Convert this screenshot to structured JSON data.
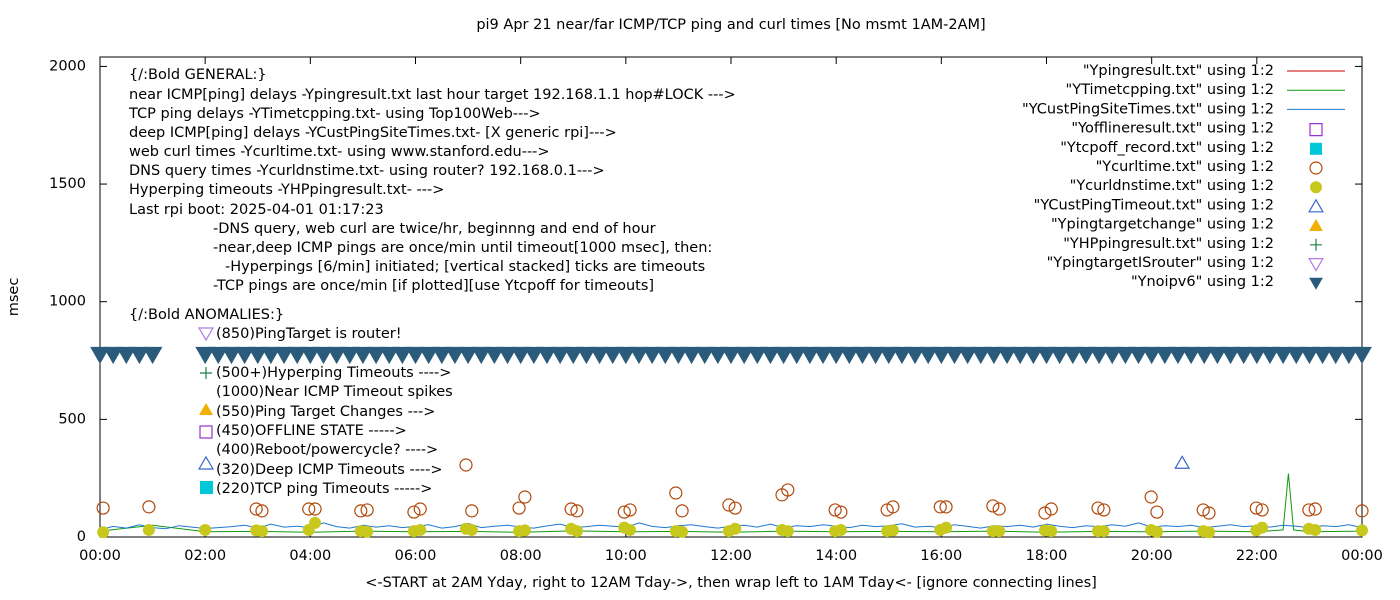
{
  "chart_data": {
    "type": "line",
    "title": "pi9 Apr 21  near/far ICMP/TCP ping and curl times [No msmt 1AM-2AM]",
    "x_label": "<-START at 2AM Yday, right to 12AM Tday->, then wrap left to 1AM Tday<- [ignore connecting lines]",
    "y_label": "msec",
    "xlim": [
      0,
      24
    ],
    "ylim": [
      0,
      2040
    ],
    "xticks": [
      {
        "value": 0,
        "label": "00:00"
      },
      {
        "value": 2,
        "label": "02:00"
      },
      {
        "value": 4,
        "label": "04:00"
      },
      {
        "value": 6,
        "label": "06:00"
      },
      {
        "value": 8,
        "label": "08:00"
      },
      {
        "value": 10,
        "label": "10:00"
      },
      {
        "value": 12,
        "label": "12:00"
      },
      {
        "value": 14,
        "label": "14:00"
      },
      {
        "value": 16,
        "label": "16:00"
      },
      {
        "value": 18,
        "label": "18:00"
      },
      {
        "value": 20,
        "label": "20:00"
      },
      {
        "value": 22,
        "label": "22:00"
      },
      {
        "value": 24,
        "label": "00:00"
      }
    ],
    "yticks": [
      0,
      500,
      1000,
      1500,
      2000
    ],
    "legend": "top-right",
    "annotations": [
      "{/:Bold GENERAL:}",
      "near ICMP[ping] delays -Ypingresult.txt last hour target 192.168.1.1 hop#LOCK --->",
      "TCP ping delays -YTimetcpping.txt- using Top100Web--->",
      "deep ICMP[ping] delays -YCustPingSiteTimes.txt- [X generic rpi]--->",
      "web curl times -Ycurltime.txt- using www.stanford.edu--->",
      "DNS query times -Ycurldnstime.txt- using router? 192.168.0.1--->",
      "Hyperping timeouts -YHPpingresult.txt- --->",
      "Last rpi boot: 2025-04-01 01:17:23",
      "-DNS query, web curl are twice/hr, beginnng and end of hour",
      "-near,deep ICMP pings are once/min until timeout[1000 msec], then:",
      "-Hyperpings [6/min] initiated; [vertical stacked] ticks are timeouts",
      "-TCP pings are once/min [if plotted][use Ytcpoff for timeouts]",
      "{/:Bold ANOMALIES:}"
    ],
    "anomaly_notes": [
      "(850)PingTarget is router!",
      "(500+)Hyperping Timeouts ---->",
      "(1000)Near ICMP Timeout spikes",
      "(550)Ping Target Changes --->",
      "(450)OFFLINE STATE ----->",
      "(400)Reboot/powercycle? ---->",
      "(320)Deep ICMP Timeouts ---->",
      "(220)TCP ping Timeouts ----->"
    ],
    "series": [
      {
        "name": "\"Ypingresult.txt\" using 1:2",
        "color": "#cc0000",
        "marker": "line",
        "x": [],
        "values": []
      },
      {
        "name": "\"YTimetcpping.txt\" using 1:2",
        "color": "#109a10",
        "marker": "line",
        "x": [
          0,
          1,
          2,
          3,
          4,
          5,
          6,
          7,
          8,
          9,
          10,
          11,
          12,
          13,
          14,
          15,
          16,
          17,
          18,
          19,
          20,
          21,
          22,
          22.5,
          22.6,
          22.7,
          23,
          24
        ],
        "values": [
          25,
          50,
          22,
          24,
          20,
          25,
          22,
          24,
          20,
          26,
          22,
          24,
          20,
          25,
          22,
          24,
          22,
          25,
          20,
          24,
          22,
          25,
          22,
          30,
          270,
          30,
          22,
          25
        ]
      },
      {
        "name": "\"YCustPingSiteTimes.txt\" using 1:2",
        "color": "#1e78d0",
        "marker": "line",
        "x": [
          0,
          0.25,
          0.5,
          0.75,
          1,
          1.25,
          1.5,
          1.75,
          2,
          2.25,
          2.5,
          2.75,
          3,
          3.25,
          3.5,
          3.75,
          4,
          4.25,
          4.5,
          4.75,
          5,
          5.25,
          5.5,
          5.75,
          6,
          6.25,
          6.5,
          6.75,
          7,
          7.25,
          7.5,
          7.75,
          8,
          8.25,
          8.5,
          8.75,
          9,
          9.25,
          9.5,
          9.75,
          10,
          10.25,
          10.5,
          10.75,
          11,
          11.25,
          11.5,
          11.75,
          12,
          12.25,
          12.5,
          12.75,
          13,
          13.25,
          13.5,
          13.75,
          14,
          14.25,
          14.5,
          14.75,
          15,
          15.25,
          15.5,
          15.75,
          16,
          16.25,
          16.5,
          16.75,
          17,
          17.25,
          17.5,
          17.75,
          18,
          18.25,
          18.5,
          18.75,
          19,
          19.25,
          19.5,
          19.75,
          20,
          20.25,
          20.5,
          20.75,
          21,
          21.25,
          21.5,
          21.75,
          22,
          22.25,
          22.5,
          22.75,
          23,
          23.25,
          23.5,
          23.75,
          24
        ],
        "values": [
          30,
          45,
          38,
          52,
          40,
          35,
          48,
          42,
          36,
          40,
          44,
          50,
          38,
          55,
          42,
          46,
          40,
          60,
          44,
          38,
          50,
          42,
          48,
          40,
          45,
          52,
          38,
          44,
          58,
          40,
          46,
          50,
          42,
          38,
          47,
          55,
          40,
          44,
          50,
          46,
          42,
          60,
          45,
          40,
          48,
          52,
          44,
          38,
          46,
          50,
          42,
          55,
          40,
          48,
          44,
          52,
          46,
          40,
          50,
          44,
          48,
          56,
          42,
          46,
          40,
          52,
          45,
          38,
          48,
          44,
          50,
          42,
          55,
          46,
          40,
          48,
          44,
          52,
          46,
          60,
          42,
          48,
          44,
          50,
          40,
          46,
          52,
          44,
          48,
          42,
          50,
          46,
          40,
          48,
          44,
          52,
          40
        ]
      },
      {
        "name": "\"Yofflineresult.txt\" using 1:2",
        "color": "#9b30d0",
        "marker": "square-open",
        "x": [],
        "values": []
      },
      {
        "name": "\"Ytcpoff_record.txt\" using 1:2",
        "color": "#00c8d8",
        "marker": "square",
        "x": [],
        "values": []
      },
      {
        "name": "\"Ycurltime.txt\" using 1:2",
        "color": "#b0480a",
        "marker": "circle-open",
        "x": [
          0.06,
          0.93,
          2.97,
          3.08,
          3.97,
          4.09,
          4.96,
          5.08,
          5.97,
          6.09,
          6.96,
          7.07,
          7.97,
          8.08,
          8.96,
          9.07,
          9.97,
          10.08,
          10.95,
          11.07,
          11.96,
          12.08,
          12.97,
          13.08,
          13.98,
          14.09,
          14.97,
          15.08,
          15.98,
          16.09,
          16.98,
          17.1,
          17.97,
          18.09,
          18.98,
          19.09,
          19.99,
          20.1,
          20.98,
          21.09,
          21.99,
          22.1,
          22.99,
          23.11,
          24
        ],
        "values": [
          123,
          128,
          119,
          111,
          119,
          119,
          111,
          115,
          106,
          119,
          306,
          111,
          123,
          170,
          119,
          111,
          106,
          115,
          187,
          111,
          136,
          123,
          179,
          200,
          115,
          106,
          115,
          128,
          128,
          128,
          132,
          119,
          102,
          119,
          123,
          115,
          170,
          106,
          115,
          102,
          123,
          115,
          115,
          119,
          111
        ]
      },
      {
        "name": "\"Ycurldnstime.txt\" using 1:2",
        "color": "#c8c81c",
        "marker": "circle",
        "x": [
          0.06,
          0.93,
          2,
          2.97,
          3.08,
          3.97,
          4.09,
          4.96,
          5.08,
          5.97,
          6.09,
          6.96,
          7.07,
          7.97,
          8.08,
          8.96,
          9.07,
          9.97,
          10.08,
          10.95,
          11.07,
          11.96,
          12.08,
          12.97,
          13.08,
          13.98,
          14.09,
          14.97,
          15.08,
          15.98,
          16.09,
          16.98,
          17.1,
          17.97,
          18.09,
          18.98,
          19.09,
          19.99,
          20.1,
          20.98,
          21.09,
          21.99,
          22.1,
          22.99,
          23.11,
          24
        ],
        "values": [
          20,
          30,
          30,
          28,
          25,
          30,
          60,
          25,
          22,
          25,
          30,
          35,
          30,
          25,
          28,
          35,
          25,
          40,
          30,
          25,
          22,
          25,
          35,
          30,
          25,
          25,
          30,
          25,
          28,
          30,
          40,
          25,
          25,
          28,
          25,
          25,
          25,
          30,
          22,
          25,
          20,
          28,
          40,
          35,
          30,
          28
        ]
      },
      {
        "name": "\"YCustPingTimeout.txt\" using 1:2",
        "color": "#3a66c8",
        "marker": "triangle-open",
        "x": [
          20.58
        ],
        "values": [
          315
        ]
      },
      {
        "name": "\"Ypingtargetchange\" using 1:2",
        "color": "#f0b000",
        "marker": "triangle",
        "x": [],
        "values": []
      },
      {
        "name": "\"YHPpingresult.txt\" using 1:2",
        "color": "#1e8040",
        "marker": "plus",
        "x": [],
        "values": []
      },
      {
        "name": "\"YpingtargetISrouter\" using 1:2",
        "color": "#b07ce0",
        "marker": "triangle-down-open",
        "x": [],
        "values": []
      },
      {
        "name": "\"Ynoipv6\" using 1:2",
        "color": "#2b5b7b",
        "marker": "triangle-down",
        "pointsize": 2.6,
        "x": [
          0,
          0.25,
          0.5,
          0.75,
          1,
          2,
          2.25,
          2.5,
          2.75,
          3,
          3.25,
          3.5,
          3.75,
          4,
          4.25,
          4.5,
          4.75,
          5,
          5.25,
          5.5,
          5.75,
          6,
          6.25,
          6.5,
          6.75,
          7,
          7.25,
          7.5,
          7.75,
          8,
          8.25,
          8.5,
          8.75,
          9,
          9.25,
          9.5,
          9.75,
          10,
          10.25,
          10.5,
          10.75,
          11,
          11.25,
          11.5,
          11.75,
          12,
          12.25,
          12.5,
          12.75,
          13,
          13.25,
          13.5,
          13.75,
          14,
          14.25,
          14.5,
          14.75,
          15,
          15.25,
          15.5,
          15.75,
          16,
          16.25,
          16.5,
          16.75,
          17,
          17.25,
          17.5,
          17.75,
          18,
          18.25,
          18.5,
          18.75,
          19,
          19.25,
          19.5,
          19.75,
          20,
          20.25,
          20.5,
          20.75,
          21,
          21.25,
          21.5,
          21.75,
          22,
          22.25,
          22.5,
          22.75,
          23,
          23.25,
          23.5,
          23.75,
          24
        ],
        "values": [
          775,
          775,
          775,
          775,
          775,
          775,
          775,
          775,
          775,
          775,
          775,
          775,
          775,
          775,
          775,
          775,
          775,
          775,
          775,
          775,
          775,
          775,
          775,
          775,
          775,
          775,
          775,
          775,
          775,
          775,
          775,
          775,
          775,
          775,
          775,
          775,
          775,
          775,
          775,
          775,
          775,
          775,
          775,
          775,
          775,
          775,
          775,
          775,
          775,
          775,
          775,
          775,
          775,
          775,
          775,
          775,
          775,
          775,
          775,
          775,
          775,
          775,
          775,
          775,
          775,
          775,
          775,
          775,
          775,
          775,
          775,
          775,
          775,
          775,
          775,
          775,
          775,
          775,
          775,
          775,
          775,
          775,
          775,
          775,
          775,
          775,
          775,
          775,
          775,
          775,
          775,
          775,
          775,
          775
        ]
      }
    ]
  }
}
